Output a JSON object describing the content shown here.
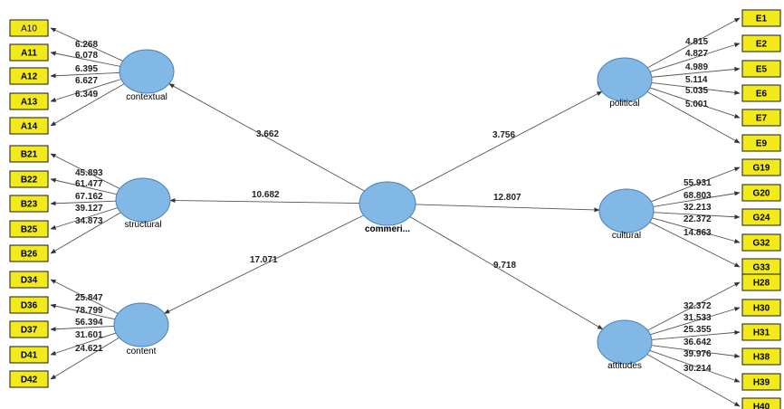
{
  "colors": {
    "indicator_fill": "#f2ea1a",
    "construct_fill": "#82b8e6",
    "line": "#555555"
  },
  "constructs": [
    {
      "id": "contextual",
      "label": "contextual"
    },
    {
      "id": "structural",
      "label": "structural"
    },
    {
      "id": "content",
      "label": "content"
    },
    {
      "id": "commeri",
      "label": "commeri..."
    },
    {
      "id": "political",
      "label": "political"
    },
    {
      "id": "cultural",
      "label": "cultural"
    },
    {
      "id": "attitudes",
      "label": "attitudes"
    }
  ],
  "groups": [
    {
      "construct": "contextual",
      "indicators": [
        {
          "label": "A10",
          "value": "6.268"
        },
        {
          "label": "A11",
          "value": "6.078"
        },
        {
          "label": "A12",
          "value": "6.395"
        },
        {
          "label": "A13",
          "value": "6.627"
        },
        {
          "label": "A14",
          "value": "6.349"
        }
      ]
    },
    {
      "construct": "structural",
      "indicators": [
        {
          "label": "B21",
          "value": "45.893"
        },
        {
          "label": "B22",
          "value": "61.477"
        },
        {
          "label": "B23",
          "value": "67.162"
        },
        {
          "label": "B25",
          "value": "39.127"
        },
        {
          "label": "B26",
          "value": "34.873"
        }
      ]
    },
    {
      "construct": "content",
      "indicators": [
        {
          "label": "D34",
          "value": "25.847"
        },
        {
          "label": "D36",
          "value": "78.799"
        },
        {
          "label": "D37",
          "value": "56.394"
        },
        {
          "label": "D41",
          "value": "31.601"
        },
        {
          "label": "D42",
          "value": "24.621"
        }
      ]
    },
    {
      "construct": "political",
      "indicators": [
        {
          "label": "E1",
          "value": "4.815"
        },
        {
          "label": "E2",
          "value": "4.827"
        },
        {
          "label": "E5",
          "value": "4.989"
        },
        {
          "label": "E6",
          "value": "5.114"
        },
        {
          "label": "E7",
          "value": "5.035"
        },
        {
          "label": "E9",
          "value": "5.001"
        }
      ]
    },
    {
      "construct": "cultural",
      "indicators": [
        {
          "label": "G19",
          "value": "55.931"
        },
        {
          "label": "G20",
          "value": "68.803"
        },
        {
          "label": "G24",
          "value": "32.213"
        },
        {
          "label": "G32",
          "value": "22.372"
        },
        {
          "label": "G33",
          "value": "14.863"
        }
      ]
    },
    {
      "construct": "attitudes",
      "indicators": [
        {
          "label": "H28",
          "value": "32.372"
        },
        {
          "label": "H30",
          "value": "31.533"
        },
        {
          "label": "H31",
          "value": "25.355"
        },
        {
          "label": "H38",
          "value": "36.642"
        },
        {
          "label": "H39",
          "value": "39.976"
        },
        {
          "label": "H40",
          "value": "30.214"
        }
      ]
    }
  ],
  "paths": [
    {
      "from": "commeri",
      "to": "contextual",
      "value": "3.662"
    },
    {
      "from": "commeri",
      "to": "structural",
      "value": "10.682"
    },
    {
      "from": "commeri",
      "to": "content",
      "value": "17.071"
    },
    {
      "from": "commeri",
      "to": "political",
      "value": "3.756"
    },
    {
      "from": "commeri",
      "to": "cultural",
      "value": "12.807"
    },
    {
      "from": "commeri",
      "to": "attitudes",
      "value": "9.718"
    }
  ]
}
